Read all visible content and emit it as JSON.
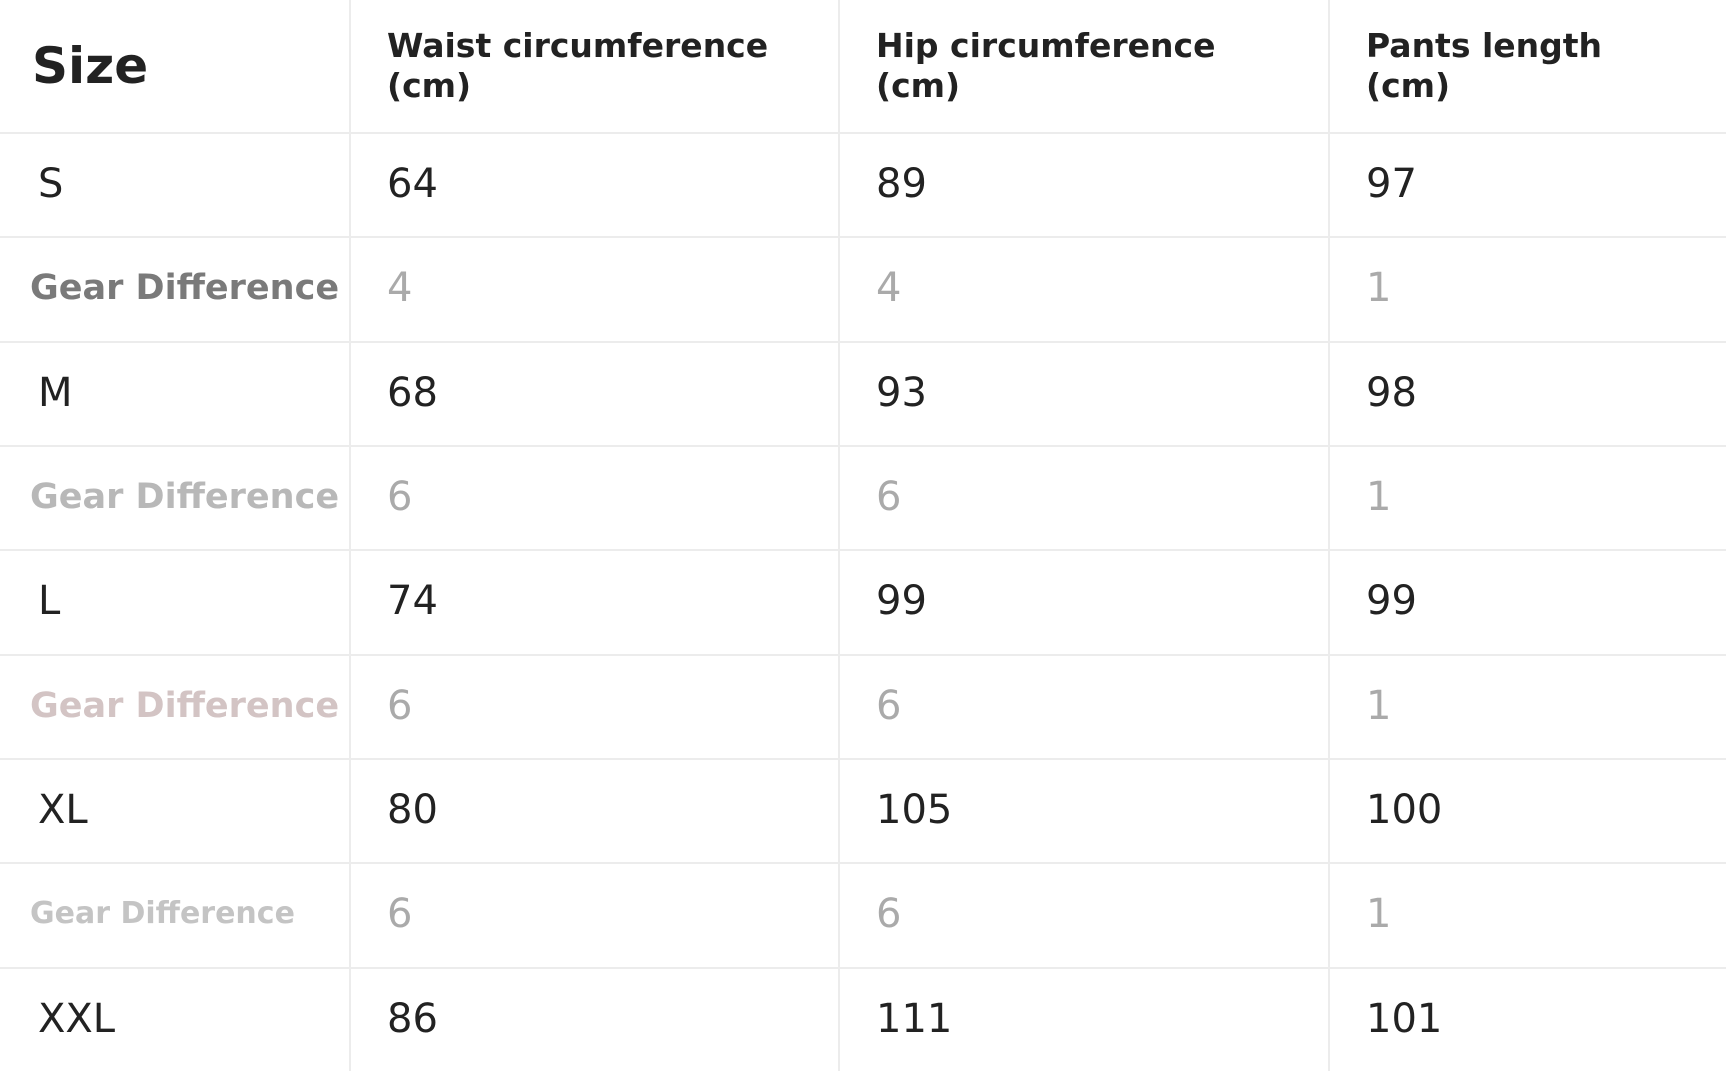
{
  "table": {
    "header": [
      "Size",
      "Waist circumference (cm)",
      "Hip circumference (cm)",
      "Pants length (cm)"
    ],
    "rows": [
      [
        "S",
        64,
        89,
        97
      ],
      [
        "Gear Difference",
        4,
        4,
        1
      ],
      [
        "M",
        68,
        93,
        98
      ],
      [
        "Gear Difference",
        6,
        6,
        1
      ],
      [
        "L",
        74,
        99,
        99
      ],
      [
        "Gear Difference",
        6,
        6,
        1
      ],
      [
        "XL",
        80,
        105,
        100
      ],
      [
        "Gear Difference",
        6,
        6,
        1
      ],
      [
        "XXL",
        86,
        111,
        101
      ]
    ]
  }
}
